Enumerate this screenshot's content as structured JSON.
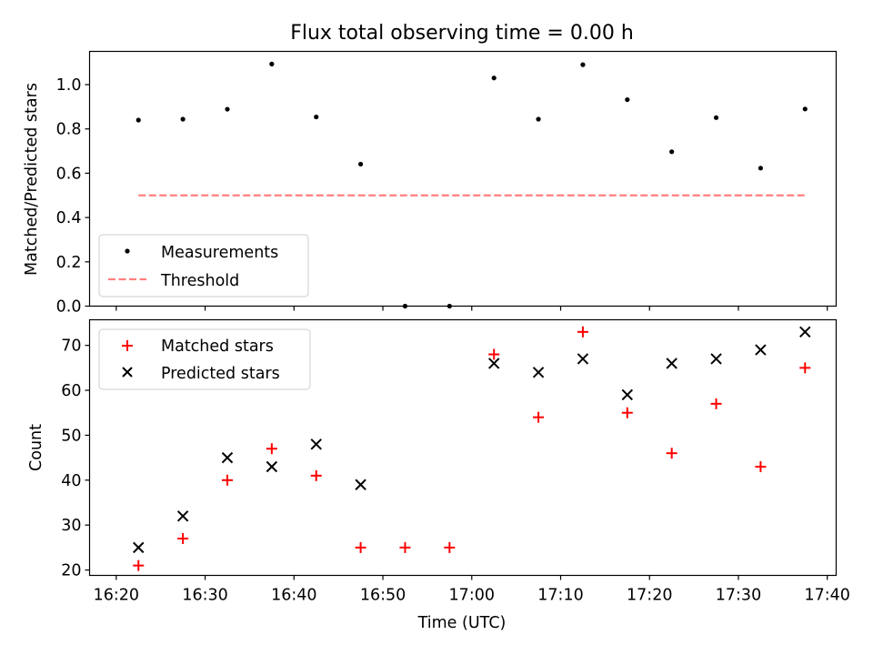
{
  "chart_data": [
    {
      "type": "scatter",
      "title": "Flux total observing time = 0.00 h",
      "ylabel": "Matched/Predicted stars",
      "xlabel": "",
      "ylim": [
        0.0,
        1.15
      ],
      "yticks": [
        "0.0",
        "0.2",
        "0.4",
        "0.6",
        "0.8",
        "1.0"
      ],
      "ytick_values": [
        0.0,
        0.2,
        0.4,
        0.6,
        0.8,
        1.0
      ],
      "x_range_minutes": [
        977,
        1061
      ],
      "x": [
        "16:22:30",
        "16:27:30",
        "16:32:30",
        "16:37:30",
        "16:42:30",
        "16:47:30",
        "16:52:30",
        "16:57:30",
        "17:02:30",
        "17:07:30",
        "17:12:30",
        "17:17:30",
        "17:22:30",
        "17:27:30",
        "17:32:30",
        "17:37:30"
      ],
      "x_minutes": [
        982.5,
        987.5,
        992.5,
        997.5,
        1002.5,
        1007.5,
        1012.5,
        1017.5,
        1022.5,
        1027.5,
        1032.5,
        1037.5,
        1042.5,
        1047.5,
        1052.5,
        1057.5
      ],
      "series": [
        {
          "name": "Measurements",
          "color": "#000000",
          "marker": "dot",
          "values": [
            0.84,
            0.844,
            0.889,
            1.093,
            0.854,
            0.641,
            0.0,
            0.0,
            1.03,
            0.844,
            1.09,
            0.932,
            0.697,
            0.851,
            0.623,
            0.89
          ]
        },
        {
          "name": "Threshold",
          "color": "#ff7f7f",
          "marker": "dashed-line",
          "x_minutes": [
            982.5,
            1057.5
          ],
          "values": [
            0.5,
            0.5
          ]
        }
      ],
      "legend": {
        "position": "lower-left",
        "entries": [
          "Measurements",
          "Threshold"
        ]
      }
    },
    {
      "type": "scatter",
      "title": "",
      "ylabel": "Count",
      "xlabel": "Time (UTC)",
      "ylim": [
        18.8,
        75.7
      ],
      "yticks": [
        "20",
        "30",
        "40",
        "50",
        "60",
        "70"
      ],
      "ytick_values": [
        20,
        30,
        40,
        50,
        60,
        70
      ],
      "xticks": [
        "16:20",
        "16:30",
        "16:40",
        "16:50",
        "17:00",
        "17:10",
        "17:20",
        "17:30",
        "17:40"
      ],
      "xtick_minutes": [
        980,
        990,
        1000,
        1010,
        1020,
        1030,
        1040,
        1050,
        1060
      ],
      "x_range_minutes": [
        977,
        1061
      ],
      "x_minutes": [
        982.5,
        987.5,
        992.5,
        997.5,
        1002.5,
        1007.5,
        1012.5,
        1017.5,
        1022.5,
        1027.5,
        1032.5,
        1037.5,
        1042.5,
        1047.5,
        1052.5,
        1057.5
      ],
      "series": [
        {
          "name": "Matched stars",
          "color": "#ff0000",
          "marker": "plus",
          "values": [
            21,
            27,
            40,
            47,
            41,
            25,
            25,
            25,
            68,
            54,
            73,
            55,
            46,
            57,
            43,
            65
          ]
        },
        {
          "name": "Predicted stars",
          "color": "#000000",
          "marker": "x",
          "x_minutes": [
            982.5,
            987.5,
            992.5,
            997.5,
            1002.5,
            1007.5,
            1022.5,
            1027.5,
            1032.5,
            1037.5,
            1042.5,
            1047.5,
            1052.5,
            1057.5
          ],
          "values": [
            25,
            32,
            45,
            43,
            48,
            39,
            66,
            64,
            67,
            59,
            66,
            67,
            69,
            73
          ]
        }
      ],
      "legend": {
        "position": "upper-left",
        "entries": [
          "Matched stars",
          "Predicted stars"
        ]
      }
    }
  ]
}
